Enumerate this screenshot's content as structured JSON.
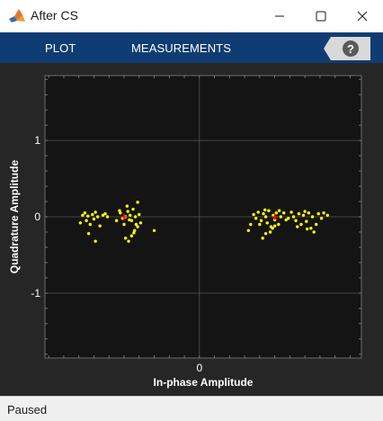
{
  "window": {
    "title": "After CS",
    "minimize_icon": "minimize-icon",
    "maximize_icon": "maximize-icon",
    "close_icon": "close-icon"
  },
  "toolstrip": {
    "tabs": [
      {
        "label": "PLOT"
      },
      {
        "label": "MEASUREMENTS"
      }
    ],
    "help_icon": "question-mark-icon"
  },
  "status": {
    "text": "Paused"
  },
  "colors": {
    "toolstrip": "#0f3d73",
    "figure_bg": "#262626",
    "axes_bg": "#141414",
    "received_points": "#ffff00",
    "reference_points": "#ff0000"
  },
  "chart_data": {
    "type": "scatter",
    "title": "",
    "xlabel": "In-phase Amplitude",
    "ylabel": "Quadrature Amplitude",
    "xlim": [
      -2.05,
      2.15
    ],
    "ylim": [
      -1.85,
      1.85
    ],
    "xticks": [
      0
    ],
    "xtick_labels": [
      "0"
    ],
    "yticks": [
      1,
      0,
      -1
    ],
    "ytick_labels": [
      "1",
      "0",
      "-1"
    ],
    "grid": true,
    "series": [
      {
        "color": "#ffff00",
        "points": [
          [
            -1.55,
            0.02
          ],
          [
            -1.52,
            0.05
          ],
          [
            -1.48,
            0.01
          ],
          [
            -1.5,
            -0.05
          ],
          [
            -1.45,
            -0.1
          ],
          [
            -1.42,
            0.03
          ],
          [
            -1.38,
            0.06
          ],
          [
            -1.35,
            0.0
          ],
          [
            -1.4,
            -0.03
          ],
          [
            -1.32,
            -0.12
          ],
          [
            -1.28,
            0.02
          ],
          [
            -1.25,
            0.04
          ],
          [
            -1.22,
            0.0
          ],
          [
            -1.47,
            -0.22
          ],
          [
            -1.38,
            -0.32
          ],
          [
            -1.58,
            -0.08
          ],
          [
            -1.1,
            -0.05
          ],
          [
            -1.05,
            0.05
          ],
          [
            -1.02,
            -0.02
          ],
          [
            -0.98,
            0.0
          ],
          [
            -0.95,
            0.07
          ],
          [
            -0.92,
            0.02
          ],
          [
            -0.9,
            -0.05
          ],
          [
            -0.88,
            0.1
          ],
          [
            -0.85,
            0.0
          ],
          [
            -0.84,
            -0.1
          ],
          [
            -0.86,
            -0.18
          ],
          [
            -0.9,
            -0.25
          ],
          [
            -0.94,
            -0.32
          ],
          [
            -0.98,
            -0.28
          ],
          [
            -0.82,
            0.19
          ],
          [
            -0.8,
            0.03
          ],
          [
            -0.78,
            -0.08
          ],
          [
            -0.87,
            -0.21
          ],
          [
            -0.6,
            -0.18
          ],
          [
            -1.0,
            -0.1
          ],
          [
            -1.06,
            0.08
          ],
          [
            -0.96,
            0.14
          ],
          [
            -0.82,
            -0.13
          ],
          [
            -0.93,
            -0.04
          ],
          [
            0.65,
            -0.18
          ],
          [
            0.68,
            -0.1
          ],
          [
            0.72,
            0.03
          ],
          [
            0.75,
            -0.02
          ],
          [
            0.78,
            0.06
          ],
          [
            0.8,
            -0.1
          ],
          [
            0.82,
            -0.05
          ],
          [
            0.85,
            0.04
          ],
          [
            0.88,
            0.0
          ],
          [
            0.9,
            -0.08
          ],
          [
            0.92,
            0.08
          ],
          [
            0.95,
            -0.13
          ],
          [
            0.98,
            0.02
          ],
          [
            1.0,
            -0.04
          ],
          [
            1.02,
            0.05
          ],
          [
            1.05,
            -0.1
          ],
          [
            1.08,
            0.0
          ],
          [
            0.84,
            -0.28
          ],
          [
            0.88,
            -0.22
          ],
          [
            0.94,
            -0.2
          ],
          [
            1.0,
            -0.12
          ],
          [
            1.12,
            0.05
          ],
          [
            1.18,
            -0.02
          ],
          [
            1.22,
            0.06
          ],
          [
            1.25,
            0.0
          ],
          [
            1.28,
            -0.05
          ],
          [
            1.32,
            0.04
          ],
          [
            1.35,
            -0.1
          ],
          [
            1.38,
            0.02
          ],
          [
            1.42,
            -0.06
          ],
          [
            1.45,
            0.05
          ],
          [
            1.48,
            -0.15
          ],
          [
            1.5,
            0.0
          ],
          [
            1.55,
            -0.1
          ],
          [
            1.58,
            0.04
          ],
          [
            1.62,
            -0.02
          ],
          [
            1.65,
            0.05
          ],
          [
            1.7,
            0.02
          ],
          [
            1.52,
            -0.2
          ],
          [
            1.43,
            -0.16
          ],
          [
            1.06,
            0.08
          ],
          [
            0.97,
            -0.15
          ],
          [
            0.87,
            0.09
          ],
          [
            1.15,
            -0.04
          ],
          [
            1.4,
            0.07
          ],
          [
            1.3,
            -0.13
          ]
        ]
      },
      {
        "color": "#ff0000",
        "points": [
          [
            -1.0,
            0.0
          ],
          [
            1.0,
            0.0
          ]
        ]
      }
    ]
  }
}
